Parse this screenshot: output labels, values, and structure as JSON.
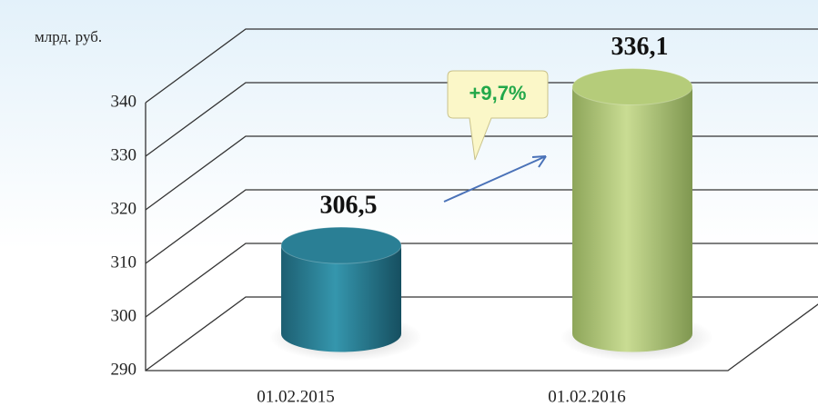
{
  "chart_data": {
    "type": "bar3d",
    "unit_label": "млрд. руб.",
    "categories": [
      "01.02.2015",
      "01.02.2016"
    ],
    "values": [
      306.5,
      336.1
    ],
    "value_labels": [
      "306,5",
      "336,1"
    ],
    "colors": [
      "#2a7f95",
      "#b5cc7a"
    ],
    "ylim": [
      290,
      340
    ],
    "yticks": [
      290,
      300,
      310,
      320,
      330,
      340
    ],
    "grid": true,
    "annotation": "+9,7%"
  }
}
